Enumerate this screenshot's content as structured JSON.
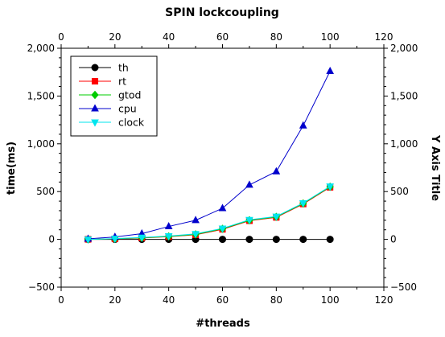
{
  "chart_data": {
    "type": "line",
    "title": "SPIN lockcoupling",
    "xlabel": "#threads",
    "ylabel": "time(ms)",
    "y2label": "Y Axis Title",
    "xlim": [
      0,
      120
    ],
    "ylim": [
      -500,
      2000
    ],
    "xticks": [
      0,
      20,
      40,
      60,
      80,
      100,
      120
    ],
    "yticks": [
      -500,
      0,
      500,
      1000,
      1500,
      2000
    ],
    "xtick_labels": [
      "0",
      "20",
      "40",
      "60",
      "80",
      "100",
      "120"
    ],
    "ytick_labels": [
      "−500",
      "0",
      "500",
      "1,000",
      "1,500",
      "2,000"
    ],
    "grid": false,
    "legend_position": "top-left",
    "x": [
      10,
      20,
      30,
      40,
      50,
      60,
      70,
      80,
      90,
      100
    ],
    "series": [
      {
        "name": "th",
        "color": "#000000",
        "marker": "circle",
        "values": [
          0,
          0,
          0,
          0,
          0,
          0,
          0,
          0,
          0,
          0
        ]
      },
      {
        "name": "rt",
        "color": "#ff0000",
        "marker": "square",
        "values": [
          0,
          5,
          15,
          28,
          48,
          105,
          195,
          230,
          370,
          545
        ]
      },
      {
        "name": "gtod",
        "color": "#00cc00",
        "marker": "diamond",
        "values": [
          0,
          6,
          17,
          30,
          52,
          110,
          200,
          235,
          375,
          550
        ]
      },
      {
        "name": "cpu",
        "color": "#0000cc",
        "marker": "triangle-up",
        "values": [
          5,
          25,
          60,
          135,
          200,
          325,
          570,
          710,
          1190,
          1760
        ]
      },
      {
        "name": "clock",
        "color": "#00e5ee",
        "marker": "triangle-down",
        "values": [
          0,
          8,
          20,
          35,
          58,
          115,
          205,
          240,
          380,
          555
        ]
      }
    ]
  }
}
